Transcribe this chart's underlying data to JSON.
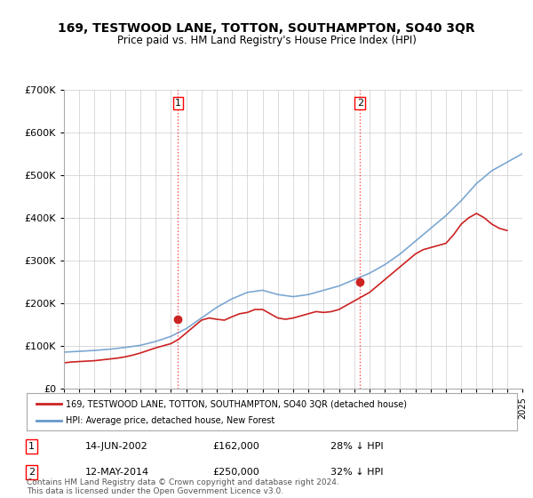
{
  "title": "169, TESTWOOD LANE, TOTTON, SOUTHAMPTON, SO40 3QR",
  "subtitle": "Price paid vs. HM Land Registry's House Price Index (HPI)",
  "ylabel": "",
  "xlabel": "",
  "ylim": [
    0,
    700000
  ],
  "yticks": [
    0,
    100000,
    200000,
    300000,
    400000,
    500000,
    600000,
    700000
  ],
  "ytick_labels": [
    "£0",
    "£100K",
    "£200K",
    "£300K",
    "£400K",
    "£500K",
    "£600K",
    "£700K"
  ],
  "background_color": "#ffffff",
  "grid_color": "#cccccc",
  "hpi_color": "#6699cc",
  "price_color": "#cc2222",
  "sale1_date": "14-JUN-2002",
  "sale1_price": 162000,
  "sale1_label": "28% ↓ HPI",
  "sale2_date": "12-MAY-2014",
  "sale2_price": 250000,
  "sale2_label": "32% ↓ HPI",
  "legend_label1": "169, TESTWOOD LANE, TOTTON, SOUTHAMPTON, SO40 3QR (detached house)",
  "legend_label2": "HPI: Average price, detached house, New Forest",
  "footnote": "Contains HM Land Registry data © Crown copyright and database right 2024.\nThis data is licensed under the Open Government Licence v3.0.",
  "xstart_year": 1995,
  "xend_year": 2025,
  "hpi_data": [
    85000,
    87000,
    89000,
    92000,
    96000,
    101000,
    110000,
    122000,
    140000,
    165000,
    190000,
    210000,
    225000,
    230000,
    220000,
    215000,
    220000,
    230000,
    240000,
    255000,
    270000,
    290000,
    315000,
    345000,
    375000,
    405000,
    440000,
    480000,
    510000,
    530000,
    550000
  ],
  "price_data_x": [
    1995.0,
    1995.5,
    1996.0,
    1996.5,
    1997.0,
    1997.5,
    1998.0,
    1998.5,
    1999.0,
    1999.5,
    2000.0,
    2000.5,
    2001.0,
    2001.5,
    2002.0,
    2002.5,
    2003.0,
    2003.5,
    2004.0,
    2004.5,
    2005.0,
    2005.5,
    2006.0,
    2006.5,
    2007.0,
    2007.5,
    2008.0,
    2008.5,
    2009.0,
    2009.5,
    2010.0,
    2010.5,
    2011.0,
    2011.5,
    2012.0,
    2012.5,
    2013.0,
    2013.5,
    2014.0,
    2014.5,
    2015.0,
    2015.5,
    2016.0,
    2016.5,
    2017.0,
    2017.5,
    2018.0,
    2018.5,
    2019.0,
    2019.5,
    2020.0,
    2020.5,
    2021.0,
    2021.5,
    2022.0,
    2022.5,
    2023.0,
    2023.5,
    2024.0
  ],
  "price_data_y": [
    60000,
    62000,
    63000,
    64000,
    65000,
    67000,
    69000,
    71000,
    74000,
    78000,
    83000,
    89000,
    95000,
    100000,
    105000,
    115000,
    130000,
    145000,
    160000,
    165000,
    162000,
    160000,
    168000,
    175000,
    178000,
    185000,
    185000,
    175000,
    165000,
    162000,
    165000,
    170000,
    175000,
    180000,
    178000,
    180000,
    185000,
    195000,
    205000,
    215000,
    225000,
    240000,
    255000,
    270000,
    285000,
    300000,
    315000,
    325000,
    330000,
    335000,
    340000,
    360000,
    385000,
    400000,
    410000,
    400000,
    385000,
    375000,
    370000
  ]
}
